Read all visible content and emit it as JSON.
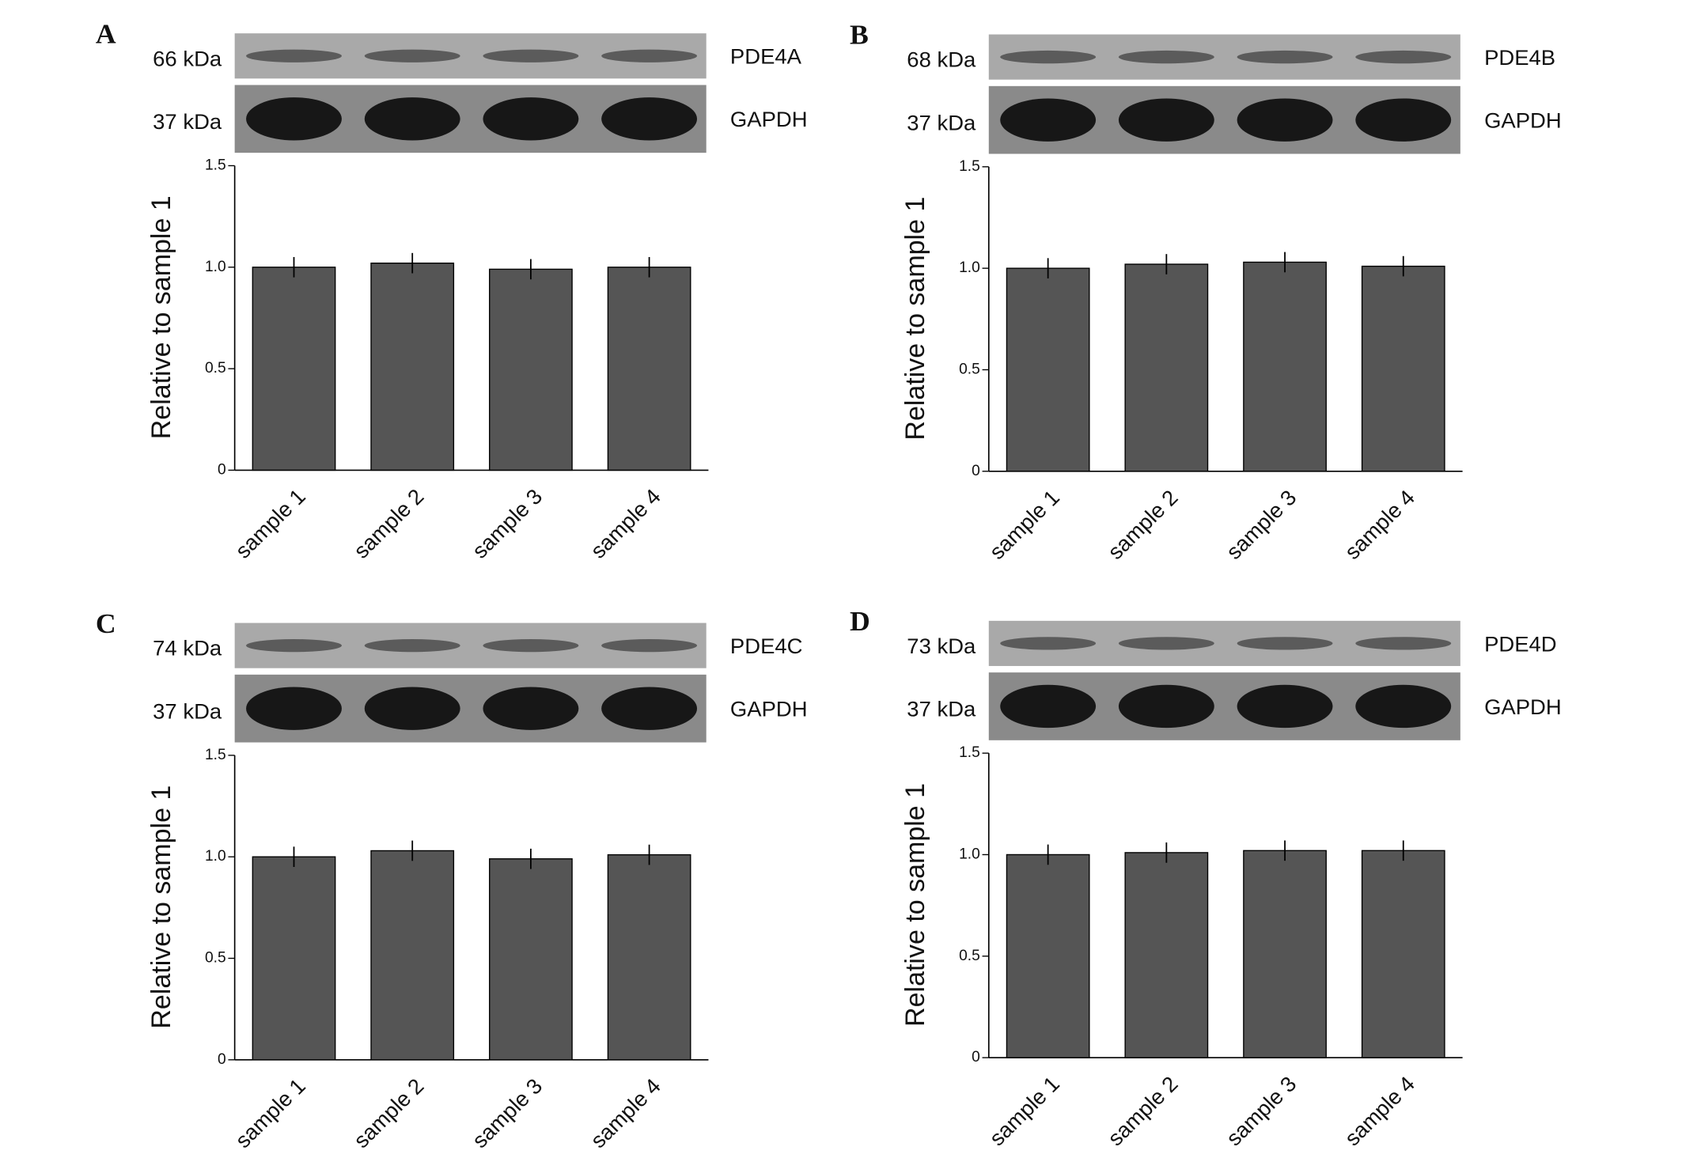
{
  "chart_data": [
    {
      "type": "bar",
      "panel": "A",
      "blots": [
        {
          "size": "66 kDa",
          "protein": "PDE4A"
        },
        {
          "size": "37 kDa",
          "protein": "GAPDH"
        }
      ],
      "y_label": "Relative to sample 1",
      "categories": [
        "sample 1",
        "sample 2",
        "sample 3",
        "sample 4"
      ],
      "values": [
        1.0,
        1.02,
        0.99,
        1.0
      ],
      "errors": [
        0.05,
        0.05,
        0.05,
        0.05
      ],
      "color": "#555555",
      "ylim": [
        0,
        1.5
      ],
      "yticks": [
        0,
        0.5,
        {
          "value": 1,
          "label": "1.0"
        },
        1.5
      ]
    },
    {
      "type": "bar",
      "panel": "B",
      "blots": [
        {
          "size": "68 kDa",
          "protein": "PDE4B"
        },
        {
          "size": "37 kDa",
          "protein": "GAPDH"
        }
      ],
      "y_label": "Relative to sample 1",
      "categories": [
        "sample 1",
        "sample 2",
        "sample 3",
        "sample 4"
      ],
      "values": [
        1.0,
        1.02,
        1.03,
        1.01
      ],
      "errors": [
        0.05,
        0.05,
        0.05,
        0.05
      ],
      "color": "#555555",
      "ylim": [
        0,
        1.5
      ],
      "yticks": [
        0,
        0.5,
        {
          "value": 1,
          "label": "1.0"
        },
        1.5
      ]
    },
    {
      "type": "bar",
      "panel": "C",
      "blots": [
        {
          "size": "74 kDa",
          "protein": "PDE4C"
        },
        {
          "size": "37 kDa",
          "protein": "GAPDH"
        }
      ],
      "y_label": "Relative to sample 1",
      "categories": [
        "sample 1",
        "sample 2",
        "sample 3",
        "sample 4"
      ],
      "values": [
        1.0,
        1.03,
        0.99,
        1.01
      ],
      "errors": [
        0.05,
        0.05,
        0.05,
        0.05
      ],
      "color": "#555555",
      "ylim": [
        0,
        1.5
      ],
      "yticks": [
        0,
        0.5,
        {
          "value": 1,
          "label": "1.0"
        },
        1.5
      ]
    },
    {
      "type": "bar",
      "panel": "D",
      "blots": [
        {
          "size": "73 kDa",
          "protein": "PDE4D"
        },
        {
          "size": "37 kDa",
          "protein": "GAPDH"
        }
      ],
      "y_label": "Relative to sample 1",
      "categories": [
        "sample 1",
        "sample 2",
        "sample 3",
        "sample 4"
      ],
      "values": [
        1.0,
        1.01,
        1.02,
        1.02
      ],
      "errors": [
        0.05,
        0.05,
        0.05,
        0.05
      ],
      "color": "#555555",
      "ylim": [
        0,
        1.5
      ],
      "yticks": [
        0,
        0.5,
        {
          "value": 1,
          "label": "1.0"
        },
        1.5
      ]
    }
  ]
}
